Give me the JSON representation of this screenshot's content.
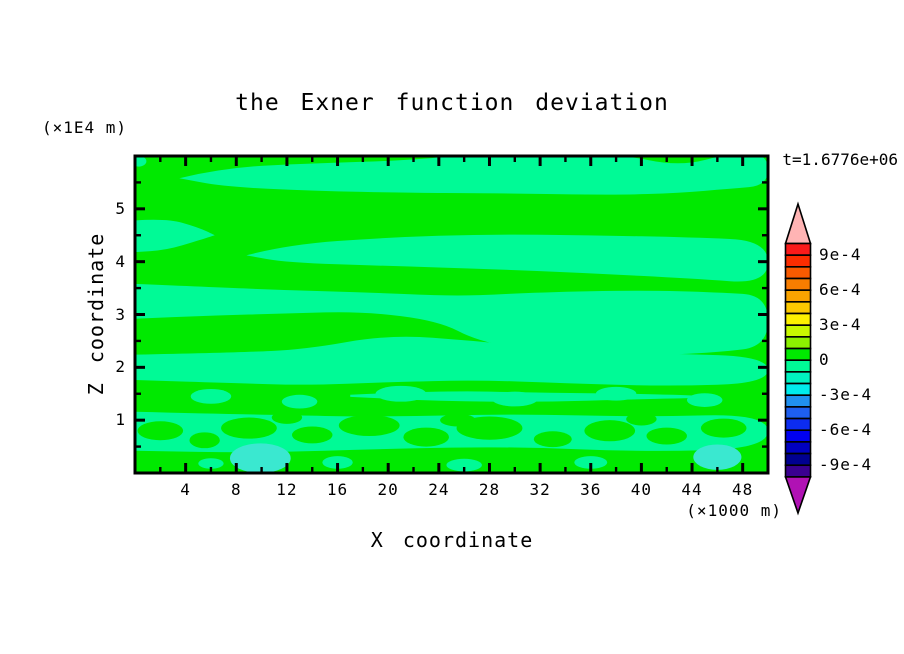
{
  "title": "the Exner function deviation",
  "labels": {
    "y_unit": "(×1E4 m)",
    "x_unit": "(×1000 m)",
    "xlabel": "X coordinate",
    "ylabel": "Z coordinate",
    "timestamp": "t=1.6776e+06"
  },
  "chart_data": {
    "type": "filled_contour",
    "title": "the Exner function deviation",
    "xlabel": "X coordinate",
    "ylabel": "Z coordinate",
    "x_units_note": "(×1000 m)",
    "z_units_note": "(×1E4 m)",
    "time_annotation": "t=1.6776e+06",
    "x_range": [
      0,
      50
    ],
    "z_range": [
      0,
      6
    ],
    "x_major_ticks": [
      4,
      8,
      12,
      16,
      20,
      24,
      28,
      32,
      36,
      40,
      44,
      48
    ],
    "x_minor_ticks": [
      2,
      6,
      10,
      14,
      18,
      22,
      26,
      30,
      34,
      38,
      42,
      46
    ],
    "z_major_ticks": [
      1,
      2,
      3,
      4,
      5
    ],
    "z_minor_ticks": [
      0.5,
      1.5,
      2.5,
      3.5,
      4.5,
      5.5
    ],
    "contour_interval": 0.0001,
    "field_colors": {
      "pos_band": "#00e900",
      "neg_band": "#00fa96",
      "patch_band": "#3ae8d0"
    },
    "field_levels_note": {
      "pos_band": "0 to 1e-4",
      "neg_band": "-1e-4 to 0",
      "patch_band": "-2e-4 to -1e-4"
    },
    "colorbar": {
      "over_color": "#ffb4b4",
      "under_color": "#b012b4",
      "segment_colors": [
        "#fa1a1a",
        "#fb2d00",
        "#f85a00",
        "#f87d00",
        "#f9a300",
        "#fcc800",
        "#fdf000",
        "#c8f800",
        "#8cf000",
        "#00e900",
        "#00fa96",
        "#00f2c0",
        "#00ecec",
        "#2090f0",
        "#1e5ff0",
        "#0c2cf0",
        "#0000f0",
        "#0000c0",
        "#000090",
        "#3a0090"
      ],
      "segment_values_top_to_bottom": [
        "1e-3..9e-4",
        "9e-4..8e-4",
        "8e-4..7e-4",
        "7e-4..6e-4",
        "6e-4..5e-4",
        "5e-4..4e-4",
        "4e-4..3e-4",
        "3e-4..2e-4",
        "2e-4..1e-4",
        "1e-4..0",
        "0..-1e-4",
        "-1e-4..-2e-4",
        "-2e-4..-3e-4",
        "-3e-4..-4e-4",
        "-4e-4..-5e-4",
        "-5e-4..-6e-4",
        "-6e-4..-7e-4",
        "-7e-4..-8e-4",
        "-8e-4..-9e-4",
        "-9e-4..-1e-3"
      ],
      "labels": [
        {
          "text": "9e-4",
          "boundary": 1
        },
        {
          "text": "6e-4",
          "boundary": 4
        },
        {
          "text": "3e-4",
          "boundary": 7
        },
        {
          "text": "0",
          "boundary": 10
        },
        {
          "text": "-3e-4",
          "boundary": 13
        },
        {
          "text": "-6e-4",
          "boundary": 16
        },
        {
          "text": "-9e-4",
          "boundary": 19
        }
      ]
    },
    "neg_bands": [
      [
        [
          3.5,
          5.58,
          5.58
        ],
        [
          7,
          5.78,
          5.42
        ],
        [
          14,
          5.86,
          5.34
        ],
        [
          22,
          5.92,
          5.3
        ],
        [
          27,
          6.05,
          5.3
        ],
        [
          38,
          6.05,
          5.26
        ],
        [
          43,
          5.8,
          5.3
        ],
        [
          47,
          6.05,
          5.38
        ],
        [
          50,
          6.05,
          5.44
        ]
      ],
      [
        [
          0,
          4.78,
          4.18
        ],
        [
          2.5,
          4.82,
          4.22
        ],
        [
          5,
          4.65,
          4.4
        ],
        [
          6.3,
          4.5,
          4.5
        ]
      ],
      [
        [
          8.8,
          4.12,
          4.12
        ],
        [
          12,
          4.32,
          3.98
        ],
        [
          20,
          4.46,
          3.92
        ],
        [
          28,
          4.52,
          3.86
        ],
        [
          36,
          4.5,
          3.78
        ],
        [
          44,
          4.46,
          3.68
        ],
        [
          50,
          4.4,
          3.58
        ]
      ],
      [
        [
          0,
          3.58,
          2.92
        ],
        [
          6,
          3.52,
          2.98
        ],
        [
          12,
          3.46,
          3.02
        ],
        [
          18,
          3.42,
          3.06
        ],
        [
          24,
          3.36,
          2.88
        ],
        [
          27,
          3.36,
          2.5
        ],
        [
          32,
          3.42,
          2.28
        ],
        [
          40,
          3.46,
          2.22
        ],
        [
          46,
          3.42,
          2.28
        ],
        [
          50,
          3.36,
          2.4
        ]
      ],
      [
        [
          0,
          2.24,
          1.76
        ],
        [
          8,
          2.28,
          1.7
        ],
        [
          13.5,
          2.34,
          1.66
        ],
        [
          20,
          2.62,
          1.72
        ],
        [
          27,
          2.5,
          1.76
        ],
        [
          34,
          2.32,
          1.7
        ],
        [
          42,
          2.26,
          1.64
        ],
        [
          50,
          2.2,
          1.7
        ]
      ],
      [
        [
          17,
          1.48,
          1.44
        ],
        [
          24,
          1.56,
          1.36
        ],
        [
          32,
          1.52,
          1.34
        ],
        [
          40,
          1.5,
          1.4
        ],
        [
          45,
          1.46,
          1.42
        ]
      ],
      [
        [
          0,
          1.16,
          0.42
        ],
        [
          10,
          1.1,
          0.38
        ],
        [
          20,
          1.06,
          0.46
        ],
        [
          30,
          1.12,
          0.5
        ],
        [
          40,
          1.06,
          0.4
        ],
        [
          50,
          1.12,
          0.46
        ]
      ]
    ],
    "pos_bands": [
      [
        [
          0,
          0.3,
          0
        ],
        [
          8,
          0.36,
          0
        ],
        [
          16,
          0.3,
          0
        ],
        [
          24,
          0.42,
          0
        ],
        [
          32,
          0.34,
          0
        ],
        [
          40,
          0.4,
          0
        ],
        [
          50,
          0.3,
          0
        ]
      ]
    ],
    "pos_blobs": [
      {
        "x": 2,
        "z": 0.8,
        "rx": 1.8,
        "rz": 0.18
      },
      {
        "x": 5.5,
        "z": 0.62,
        "rx": 1.2,
        "rz": 0.15
      },
      {
        "x": 9,
        "z": 0.85,
        "rx": 2.2,
        "rz": 0.2
      },
      {
        "x": 14,
        "z": 0.72,
        "rx": 1.6,
        "rz": 0.16
      },
      {
        "x": 18.5,
        "z": 0.9,
        "rx": 2.4,
        "rz": 0.2
      },
      {
        "x": 23,
        "z": 0.68,
        "rx": 1.8,
        "rz": 0.18
      },
      {
        "x": 28,
        "z": 0.85,
        "rx": 2.6,
        "rz": 0.22
      },
      {
        "x": 33,
        "z": 0.64,
        "rx": 1.5,
        "rz": 0.15
      },
      {
        "x": 37.5,
        "z": 0.8,
        "rx": 2.0,
        "rz": 0.2
      },
      {
        "x": 42,
        "z": 0.7,
        "rx": 1.6,
        "rz": 0.16
      },
      {
        "x": 46.5,
        "z": 0.85,
        "rx": 1.8,
        "rz": 0.18
      },
      {
        "x": 12,
        "z": 1.05,
        "rx": 1.2,
        "rz": 0.12
      },
      {
        "x": 25.5,
        "z": 1.0,
        "rx": 1.4,
        "rz": 0.12
      },
      {
        "x": 40,
        "z": 1.02,
        "rx": 1.2,
        "rz": 0.12
      }
    ],
    "neg_blobs": [
      {
        "x": 6,
        "z": 1.45,
        "rx": 1.6,
        "rz": 0.14
      },
      {
        "x": 13,
        "z": 1.35,
        "rx": 1.4,
        "rz": 0.13
      },
      {
        "x": 21,
        "z": 1.5,
        "rx": 2.0,
        "rz": 0.15
      },
      {
        "x": 30,
        "z": 1.4,
        "rx": 1.8,
        "rz": 0.14
      },
      {
        "x": 38,
        "z": 1.5,
        "rx": 1.6,
        "rz": 0.13
      },
      {
        "x": 45,
        "z": 1.38,
        "rx": 1.4,
        "rz": 0.13
      },
      {
        "x": 6,
        "z": 0.18,
        "rx": 1.0,
        "rz": 0.1
      },
      {
        "x": 16,
        "z": 0.2,
        "rx": 1.2,
        "rz": 0.12
      },
      {
        "x": 26,
        "z": 0.15,
        "rx": 1.4,
        "rz": 0.12
      },
      {
        "x": 36,
        "z": 0.2,
        "rx": 1.3,
        "rz": 0.12
      },
      {
        "x": 0.3,
        "z": 5.9,
        "rx": 0.6,
        "rz": 0.1
      }
    ],
    "patches": [
      {
        "x": 9.9,
        "z": 0.28,
        "rx": 2.4,
        "rz": 0.28
      },
      {
        "x": 46,
        "z": 0.3,
        "rx": 1.9,
        "rz": 0.24
      }
    ]
  }
}
